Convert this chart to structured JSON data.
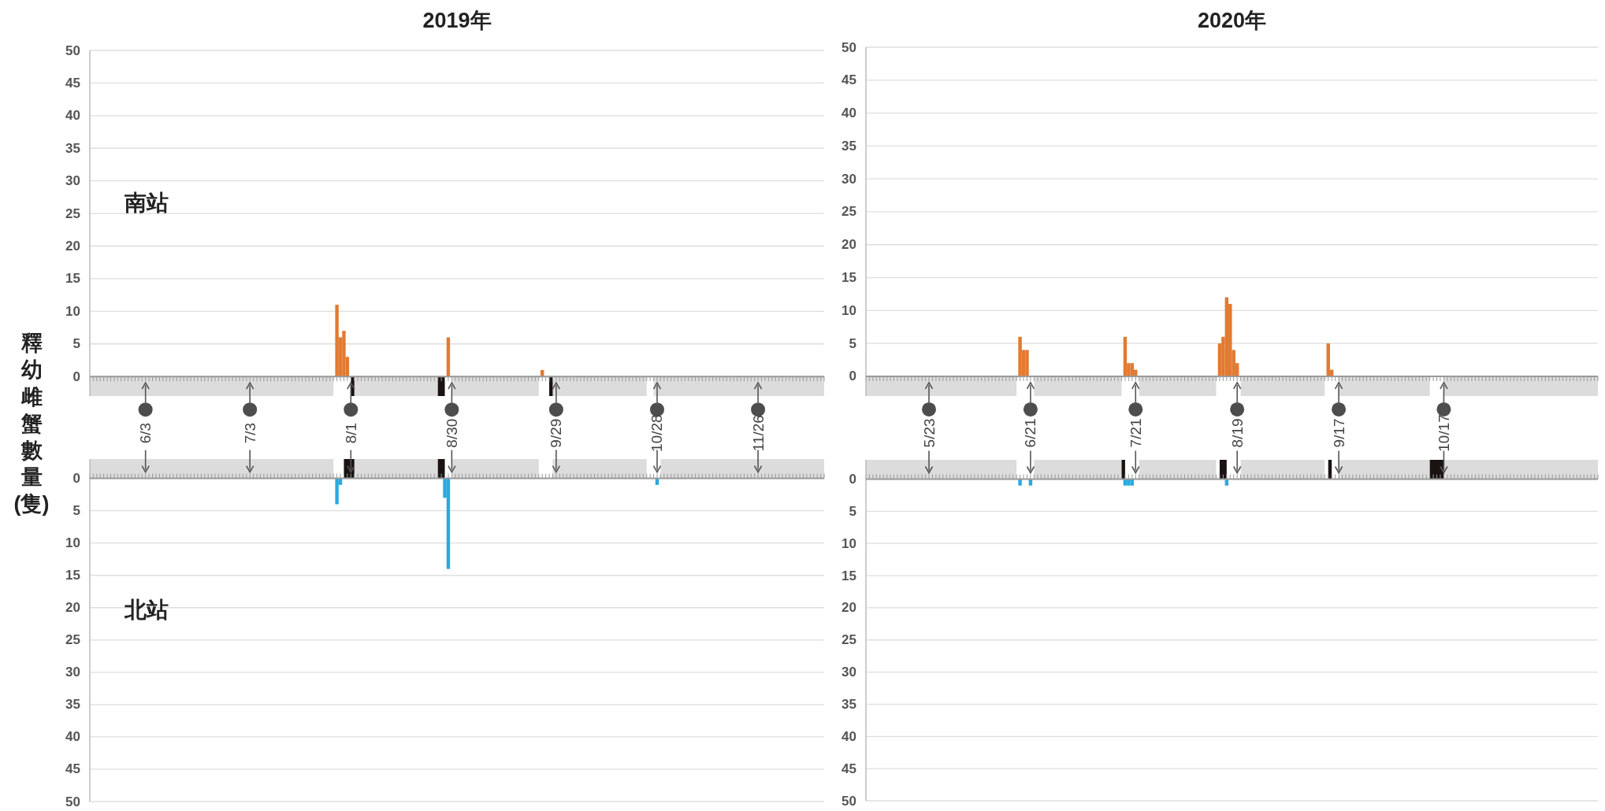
{
  "chart_data": [
    {
      "type": "bar",
      "title": "2019年",
      "ylabel": "釋幼雌蟹數量(隻)",
      "annotations": [
        "南站"
      ],
      "x": [
        "2019-07-28",
        "2019-07-29",
        "2019-07-30",
        "2019-07-31",
        "2019-08-29",
        "2019-09-25"
      ],
      "series": [
        {
          "color": "#e27a31",
          "values": [
            11,
            6,
            7,
            3,
            6,
            1
          ]
        }
      ],
      "xlim": [
        "2019-05-18",
        "2019-12-15"
      ],
      "ylim": [
        -3,
        50
      ],
      "yticks": [
        0,
        5,
        10,
        15,
        20,
        25,
        30,
        35,
        40,
        45,
        50
      ],
      "xticks": [
        {
          "value": "2019-06-03",
          "label": "6/3"
        },
        {
          "value": "2019-07-03",
          "label": "7/3"
        },
        {
          "value": "2019-08-01",
          "label": "8/1"
        },
        {
          "value": "2019-08-30",
          "label": "8/30"
        },
        {
          "value": "2019-09-29",
          "label": "9/29"
        },
        {
          "value": "2019-10-28",
          "label": "10/28"
        },
        {
          "value": "2019-11-26",
          "label": "11/26"
        }
      ],
      "grid": "y",
      "bands": [
        {
          "axis": "x",
          "from": "2019-05-18",
          "to": "2019-07-27",
          "color": "#dcdcdd"
        },
        {
          "axis": "x",
          "from": "2019-08-01",
          "to": "2019-08-26",
          "color": "#dcdcdd"
        },
        {
          "axis": "x",
          "from": "2019-08-30",
          "to": "2019-09-24",
          "color": "#dcdcdd"
        },
        {
          "axis": "x",
          "from": "2019-09-28",
          "to": "2019-10-25",
          "color": "#dcdcdd"
        },
        {
          "axis": "x",
          "from": "2019-10-27",
          "to": "2019-12-15",
          "color": "#dcdcdd"
        },
        {
          "axis": "x",
          "from": "2019-08-01",
          "to": "2019-08-02",
          "color": "#1a1311"
        },
        {
          "axis": "x",
          "from": "2019-08-26",
          "to": "2019-08-28",
          "color": "#1a1311"
        },
        {
          "axis": "x",
          "from": "2019-09-27",
          "to": "2019-09-28",
          "color": "#1a1311"
        }
      ]
    },
    {
      "type": "bar",
      "annotations": [
        "北站"
      ],
      "x": [
        "2019-07-28",
        "2019-07-29",
        "2019-08-28",
        "2019-08-29",
        "2019-10-28"
      ],
      "series": [
        {
          "color": "#28a9e1",
          "values": [
            4,
            1,
            3,
            14,
            1
          ]
        }
      ],
      "xlim": [
        "2019-05-18",
        "2019-12-15"
      ],
      "ylim": [
        50,
        -3
      ],
      "yticks": [
        0,
        5,
        10,
        15,
        20,
        25,
        30,
        35,
        40,
        45,
        50
      ],
      "xticks": [
        {
          "value": "2019-06-03",
          "label": null
        },
        {
          "value": "2019-07-03",
          "label": null
        },
        {
          "value": "2019-08-01",
          "label": null
        },
        {
          "value": "2019-08-30",
          "label": null
        },
        {
          "value": "2019-09-29",
          "label": null
        },
        {
          "value": "2019-10-28",
          "label": null
        },
        {
          "value": "2019-11-26",
          "label": null
        }
      ],
      "tick_labels": "y",
      "grid": "y",
      "bands": [
        {
          "axis": "x",
          "from": "2019-05-18",
          "to": "2019-07-27",
          "color": "#dcdcdd"
        },
        {
          "axis": "x",
          "from": "2019-08-01",
          "to": "2019-08-26",
          "color": "#dcdcdd"
        },
        {
          "axis": "x",
          "from": "2019-08-30",
          "to": "2019-09-24",
          "color": "#dcdcdd"
        },
        {
          "axis": "x",
          "from": "2019-09-28",
          "to": "2019-10-25",
          "color": "#dcdcdd"
        },
        {
          "axis": "x",
          "from": "2019-10-29",
          "to": "2019-12-15",
          "color": "#dcdcdd"
        },
        {
          "axis": "x",
          "from": "2019-07-30",
          "to": "2019-08-02",
          "color": "#1a1311"
        },
        {
          "axis": "x",
          "from": "2019-08-26",
          "to": "2019-08-28",
          "color": "#1a1311"
        }
      ]
    },
    {
      "type": "bar",
      "title": "2020年",
      "x": [
        "2020-06-18",
        "2020-06-19",
        "2020-06-20",
        "2020-07-18",
        "2020-07-19",
        "2020-07-20",
        "2020-07-21",
        "2020-08-14",
        "2020-08-15",
        "2020-08-16",
        "2020-08-17",
        "2020-08-18",
        "2020-08-19",
        "2020-09-14",
        "2020-09-15"
      ],
      "series": [
        {
          "color": "#e27a31",
          "values": [
            6,
            4,
            4,
            6,
            2,
            2,
            1,
            5,
            6,
            12,
            11,
            4,
            2,
            5,
            1
          ]
        }
      ],
      "xlim": [
        "2020-05-05",
        "2020-11-30"
      ],
      "ylim": [
        -3,
        50
      ],
      "yticks": [
        0,
        5,
        10,
        15,
        20,
        25,
        30,
        35,
        40,
        45,
        50
      ],
      "xticks": [
        {
          "value": "2020-05-23",
          "label": "5/23"
        },
        {
          "value": "2020-06-21",
          "label": "6/21"
        },
        {
          "value": "2020-07-21",
          "label": "7/21"
        },
        {
          "value": "2020-08-19",
          "label": "8/19"
        },
        {
          "value": "2020-09-17",
          "label": "9/17"
        },
        {
          "value": "2020-10-17",
          "label": "10/17"
        }
      ],
      "grid": "y",
      "bands": [
        {
          "axis": "x",
          "from": "2020-05-05",
          "to": "2020-06-17",
          "color": "#dcdcdd"
        },
        {
          "axis": "x",
          "from": "2020-06-22",
          "to": "2020-07-17",
          "color": "#dcdcdd"
        },
        {
          "axis": "x",
          "from": "2020-07-22",
          "to": "2020-08-13",
          "color": "#dcdcdd"
        },
        {
          "axis": "x",
          "from": "2020-08-20",
          "to": "2020-09-13",
          "color": "#dcdcdd"
        },
        {
          "axis": "x",
          "from": "2020-09-17",
          "to": "2020-10-13",
          "color": "#dcdcdd"
        },
        {
          "axis": "x",
          "from": "2020-10-17",
          "to": "2020-11-30",
          "color": "#dcdcdd"
        }
      ]
    },
    {
      "type": "bar",
      "x": [
        "2020-06-18",
        "2020-06-21",
        "2020-07-18",
        "2020-07-19",
        "2020-07-20",
        "2020-08-16"
      ],
      "series": [
        {
          "color": "#28a9e1",
          "values": [
            1,
            1,
            1,
            1,
            1,
            1
          ]
        }
      ],
      "xlim": [
        "2020-05-05",
        "2020-11-30"
      ],
      "ylim": [
        50,
        -3
      ],
      "yticks": [
        0,
        5,
        10,
        15,
        20,
        25,
        30,
        35,
        40,
        45,
        50
      ],
      "xticks": [
        {
          "value": "2020-05-23",
          "label": null
        },
        {
          "value": "2020-06-21",
          "label": null
        },
        {
          "value": "2020-07-21",
          "label": null
        },
        {
          "value": "2020-08-19",
          "label": null
        },
        {
          "value": "2020-09-17",
          "label": null
        },
        {
          "value": "2020-10-17",
          "label": null
        }
      ],
      "tick_labels": "y",
      "grid": "y",
      "bands": [
        {
          "axis": "x",
          "from": "2020-05-05",
          "to": "2020-06-17",
          "color": "#dcdcdd"
        },
        {
          "axis": "x",
          "from": "2020-06-22",
          "to": "2020-07-17",
          "color": "#dcdcdd"
        },
        {
          "axis": "x",
          "from": "2020-07-22",
          "to": "2020-08-13",
          "color": "#dcdcdd"
        },
        {
          "axis": "x",
          "from": "2020-08-20",
          "to": "2020-09-13",
          "color": "#dcdcdd"
        },
        {
          "axis": "x",
          "from": "2020-09-17",
          "to": "2020-10-13",
          "color": "#dcdcdd"
        },
        {
          "axis": "x",
          "from": "2020-10-17",
          "to": "2020-11-30",
          "color": "#dcdcdd"
        },
        {
          "axis": "x",
          "from": "2020-07-17",
          "to": "2020-07-18",
          "color": "#1a1311"
        },
        {
          "axis": "x",
          "from": "2020-08-14",
          "to": "2020-08-16",
          "color": "#1a1311"
        },
        {
          "axis": "x",
          "from": "2020-09-14",
          "to": "2020-09-15",
          "color": "#1a1311"
        },
        {
          "axis": "x",
          "from": "2020-10-13",
          "to": "2020-10-17",
          "color": "#1a1311"
        }
      ]
    }
  ]
}
